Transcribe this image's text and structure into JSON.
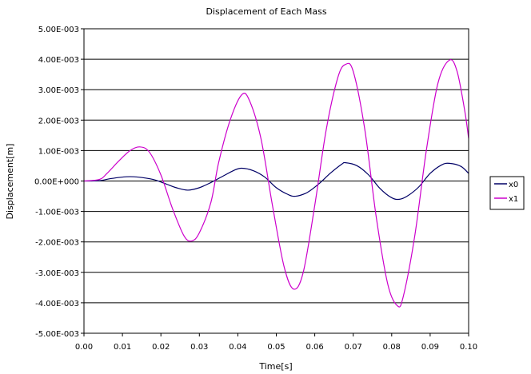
{
  "chart_data": {
    "type": "line",
    "title": "Displacement of Each Mass",
    "xlabel": "Time[s]",
    "ylabel": "Displacement[m]",
    "xlim": [
      0,
      0.1
    ],
    "ylim": [
      -0.005,
      0.005
    ],
    "x_ticks": [
      "0.00",
      "0.01",
      "0.02",
      "0.03",
      "0.04",
      "0.05",
      "0.06",
      "0.07",
      "0.08",
      "0.09",
      "0.10"
    ],
    "y_ticks": [
      "5.00E-003",
      "4.00E-003",
      "3.00E-003",
      "2.00E-003",
      "1.00E-003",
      "0.00E+000",
      "-1.00E-003",
      "-2.00E-003",
      "-3.00E-003",
      "-4.00E-003",
      "-5.00E-003"
    ],
    "grid": "horizontal",
    "legend_position": "right",
    "series": [
      {
        "name": "x0",
        "color": "#000066",
        "points": [
          [
            0.0,
            0.0
          ],
          [
            0.004,
            1e-05
          ],
          [
            0.007,
            8e-05
          ],
          [
            0.011,
            0.00014
          ],
          [
            0.014,
            0.00013
          ],
          [
            0.018,
            5e-05
          ],
          [
            0.021,
            -8e-05
          ],
          [
            0.024,
            -0.00022
          ],
          [
            0.027,
            -0.0003
          ],
          [
            0.03,
            -0.00022
          ],
          [
            0.033,
            -5e-05
          ],
          [
            0.036,
            0.00015
          ],
          [
            0.039,
            0.00035
          ],
          [
            0.041,
            0.00042
          ],
          [
            0.044,
            0.00034
          ],
          [
            0.047,
            0.00013
          ],
          [
            0.05,
            -0.00022
          ],
          [
            0.053,
            -0.00044
          ],
          [
            0.055,
            -0.0005
          ],
          [
            0.058,
            -0.00038
          ],
          [
            0.061,
            -0.0001
          ],
          [
            0.064,
            0.00025
          ],
          [
            0.067,
            0.00055
          ],
          [
            0.068,
            0.0006
          ],
          [
            0.071,
            0.0005
          ],
          [
            0.074,
            0.0002
          ],
          [
            0.077,
            -0.00025
          ],
          [
            0.08,
            -0.00055
          ],
          [
            0.082,
            -0.0006
          ],
          [
            0.084,
            -0.0005
          ],
          [
            0.087,
            -0.0002
          ],
          [
            0.09,
            0.00025
          ],
          [
            0.093,
            0.00053
          ],
          [
            0.095,
            0.00058
          ],
          [
            0.098,
            0.00048
          ],
          [
            0.1,
            0.00025
          ]
        ]
      },
      {
        "name": "x1",
        "color": "#cc00cc",
        "points": [
          [
            0.0,
            0.0
          ],
          [
            0.004,
            5e-05
          ],
          [
            0.006,
            0.00025
          ],
          [
            0.009,
            0.00065
          ],
          [
            0.012,
            0.001
          ],
          [
            0.0145,
            0.00112
          ],
          [
            0.017,
            0.00095
          ],
          [
            0.02,
            0.0002
          ],
          [
            0.023,
            -0.0009
          ],
          [
            0.026,
            -0.0018
          ],
          [
            0.028,
            -0.00197
          ],
          [
            0.03,
            -0.0017
          ],
          [
            0.033,
            -0.0007
          ],
          [
            0.035,
            0.0006
          ],
          [
            0.038,
            0.002
          ],
          [
            0.041,
            0.00283
          ],
          [
            0.043,
            0.00265
          ],
          [
            0.046,
            0.0014
          ],
          [
            0.049,
            -0.0008
          ],
          [
            0.052,
            -0.0028
          ],
          [
            0.0545,
            -0.00355
          ],
          [
            0.057,
            -0.003
          ],
          [
            0.06,
            -0.0008
          ],
          [
            0.063,
            0.0017
          ],
          [
            0.066,
            0.0034
          ],
          [
            0.068,
            0.00383
          ],
          [
            0.07,
            0.0036
          ],
          [
            0.073,
            0.0017
          ],
          [
            0.076,
            -0.0012
          ],
          [
            0.079,
            -0.0034
          ],
          [
            0.0815,
            -0.0041
          ],
          [
            0.083,
            -0.0038
          ],
          [
            0.086,
            -0.0018
          ],
          [
            0.089,
            0.001
          ],
          [
            0.092,
            0.0032
          ],
          [
            0.095,
            0.00397
          ],
          [
            0.097,
            0.0036
          ],
          [
            0.099,
            0.0023
          ],
          [
            0.1,
            0.0014
          ]
        ]
      }
    ]
  }
}
